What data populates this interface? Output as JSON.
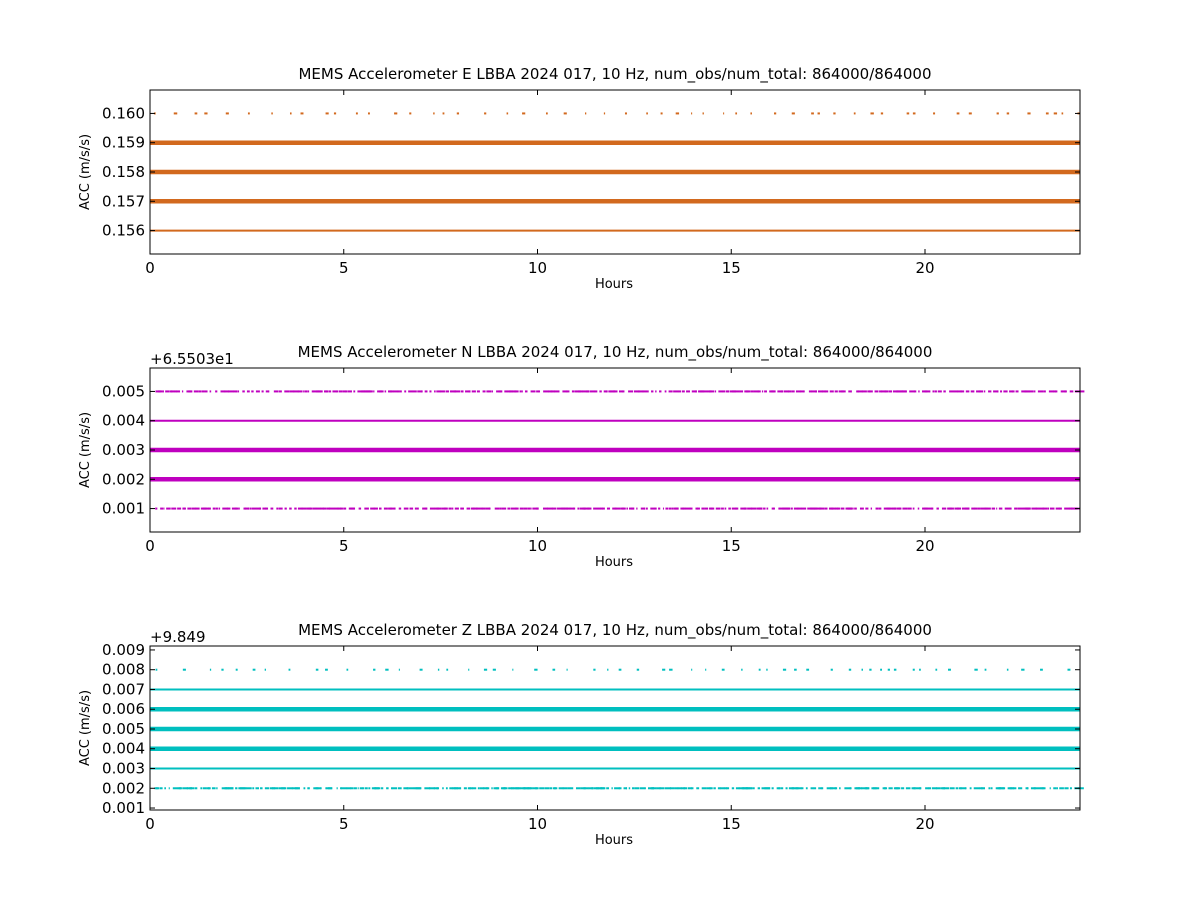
{
  "chart_data": [
    {
      "type": "scatter",
      "title": "MEMS Accelerometer E LBBA 2024 017, 10 Hz, num_obs/num_total: 864000/864000",
      "xlabel": "Hours",
      "ylabel": "ACC (m/s/s)",
      "offset_label": "",
      "xlim": [
        0,
        24
      ],
      "ylim": [
        0.1552,
        0.1608
      ],
      "xticks": [
        0,
        5,
        10,
        15,
        20
      ],
      "xtick_labels": [
        "0",
        "5",
        "10",
        "15",
        "20"
      ],
      "yticks": [
        0.156,
        0.157,
        0.158,
        0.159,
        0.16
      ],
      "ytick_labels": [
        "0.156",
        "0.157",
        "0.158",
        "0.159",
        "0.160"
      ],
      "color": "#d2691e",
      "levels": [
        {
          "y": 0.156,
          "density": "dense"
        },
        {
          "y": 0.157,
          "density": "solid"
        },
        {
          "y": 0.158,
          "density": "solid"
        },
        {
          "y": 0.159,
          "density": "solid"
        },
        {
          "y": 0.16,
          "density": "sparse"
        }
      ],
      "x_range": [
        0,
        24
      ]
    },
    {
      "type": "scatter",
      "title": "MEMS Accelerometer N LBBA 2024 017, 10 Hz, num_obs/num_total: 864000/864000",
      "xlabel": "Hours",
      "ylabel": "ACC (m/s/s)",
      "offset_label": "+6.5503e1",
      "xlim": [
        0,
        24
      ],
      "ylim": [
        0.0002,
        0.0058
      ],
      "xticks": [
        0,
        5,
        10,
        15,
        20
      ],
      "xtick_labels": [
        "0",
        "5",
        "10",
        "15",
        "20"
      ],
      "yticks": [
        0.001,
        0.002,
        0.003,
        0.004,
        0.005
      ],
      "ytick_labels": [
        "0.001",
        "0.002",
        "0.003",
        "0.004",
        "0.005"
      ],
      "color": "#bf00bf",
      "levels": [
        {
          "y": 0.001,
          "density": "medium"
        },
        {
          "y": 0.002,
          "density": "solid"
        },
        {
          "y": 0.003,
          "density": "solid"
        },
        {
          "y": 0.004,
          "density": "dense"
        },
        {
          "y": 0.005,
          "density": "medium"
        }
      ],
      "x_range": [
        0,
        24
      ]
    },
    {
      "type": "scatter",
      "title": "MEMS Accelerometer Z LBBA 2024 017, 10 Hz, num_obs/num_total: 864000/864000",
      "xlabel": "Hours",
      "ylabel": "ACC (m/s/s)",
      "offset_label": "+9.849",
      "xlim": [
        0,
        24
      ],
      "ylim": [
        0.0009,
        0.0092
      ],
      "xticks": [
        0,
        5,
        10,
        15,
        20
      ],
      "xtick_labels": [
        "0",
        "5",
        "10",
        "15",
        "20"
      ],
      "yticks": [
        0.001,
        0.002,
        0.003,
        0.004,
        0.005,
        0.006,
        0.007,
        0.008,
        0.009
      ],
      "ytick_labels": [
        "0.001",
        "0.002",
        "0.003",
        "0.004",
        "0.005",
        "0.006",
        "0.007",
        "0.008",
        "0.009"
      ],
      "color": "#00bfbf",
      "levels": [
        {
          "y": 0.002,
          "density": "medium"
        },
        {
          "y": 0.003,
          "density": "dense"
        },
        {
          "y": 0.004,
          "density": "solid"
        },
        {
          "y": 0.005,
          "density": "solid"
        },
        {
          "y": 0.006,
          "density": "solid"
        },
        {
          "y": 0.007,
          "density": "dense"
        },
        {
          "y": 0.008,
          "density": "sparse"
        }
      ],
      "x_range": [
        0,
        24
      ]
    }
  ]
}
